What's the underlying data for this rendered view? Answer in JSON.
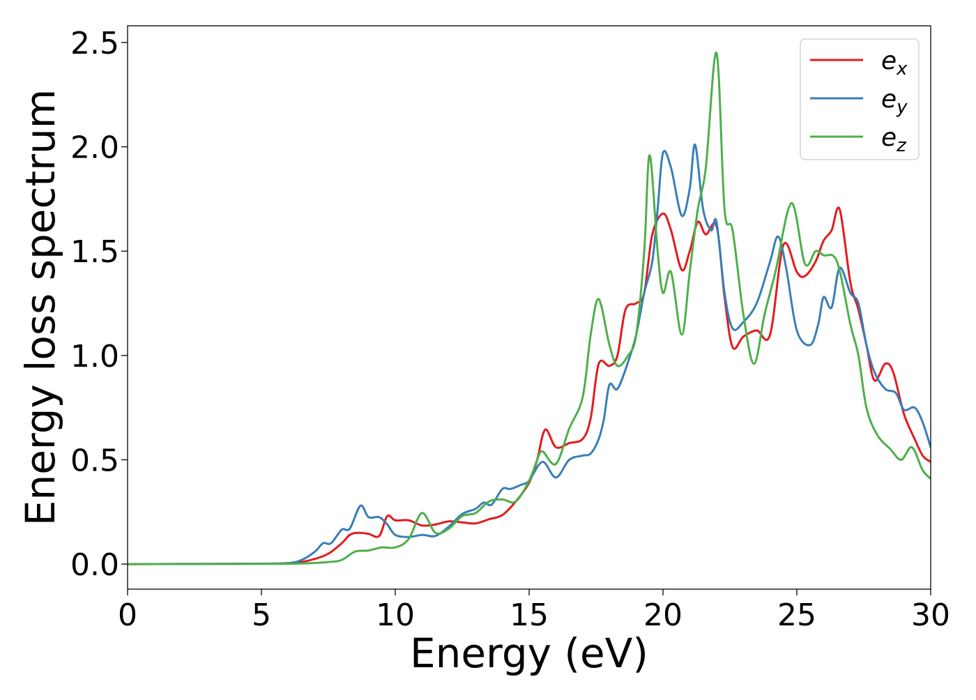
{
  "chart_data": {
    "type": "line",
    "xlabel": "Energy (eV)",
    "ylabel": "Energy loss spectrum",
    "xlim": [
      0,
      30
    ],
    "ylim": [
      -0.12,
      2.58
    ],
    "xticks": [
      0,
      5,
      10,
      15,
      20,
      25,
      30
    ],
    "xtick_labels": [
      "0",
      "5",
      "10",
      "15",
      "20",
      "25",
      "30"
    ],
    "yticks": [
      0.0,
      0.5,
      1.0,
      1.5,
      2.0,
      2.5
    ],
    "ytick_labels": [
      "0.0",
      "0.5",
      "1.0",
      "1.5",
      "2.0",
      "2.5"
    ],
    "grid": false,
    "legend_position": "top-right",
    "series": [
      {
        "name": "e",
        "subscript": "x",
        "color": "#e41a1c",
        "points": [
          [
            0,
            0
          ],
          [
            5,
            0.002
          ],
          [
            6,
            0.005
          ],
          [
            6.5,
            0.01
          ],
          [
            7,
            0.025
          ],
          [
            7.5,
            0.05
          ],
          [
            8,
            0.1
          ],
          [
            8.3,
            0.14
          ],
          [
            8.6,
            0.15
          ],
          [
            9.0,
            0.145
          ],
          [
            9.4,
            0.135
          ],
          [
            9.7,
            0.23
          ],
          [
            10.0,
            0.21
          ],
          [
            10.5,
            0.21
          ],
          [
            11.0,
            0.185
          ],
          [
            11.5,
            0.19
          ],
          [
            12.0,
            0.205
          ],
          [
            12.5,
            0.2
          ],
          [
            13.0,
            0.195
          ],
          [
            13.5,
            0.215
          ],
          [
            14.0,
            0.235
          ],
          [
            14.5,
            0.3
          ],
          [
            15.0,
            0.39
          ],
          [
            15.3,
            0.5
          ],
          [
            15.6,
            0.645
          ],
          [
            16.0,
            0.56
          ],
          [
            16.5,
            0.58
          ],
          [
            17.0,
            0.6
          ],
          [
            17.3,
            0.7
          ],
          [
            17.6,
            0.96
          ],
          [
            18.0,
            0.95
          ],
          [
            18.3,
            1.0
          ],
          [
            18.6,
            1.22
          ],
          [
            19.0,
            1.25
          ],
          [
            19.3,
            1.3
          ],
          [
            19.6,
            1.58
          ],
          [
            20.0,
            1.68
          ],
          [
            20.3,
            1.6
          ],
          [
            20.7,
            1.41
          ],
          [
            21.0,
            1.5
          ],
          [
            21.3,
            1.64
          ],
          [
            21.6,
            1.58
          ],
          [
            22.0,
            1.62
          ],
          [
            22.3,
            1.28
          ],
          [
            22.6,
            1.04
          ],
          [
            23.0,
            1.09
          ],
          [
            23.5,
            1.12
          ],
          [
            24.0,
            1.1
          ],
          [
            24.5,
            1.53
          ],
          [
            25.0,
            1.4
          ],
          [
            25.3,
            1.38
          ],
          [
            25.7,
            1.45
          ],
          [
            26.0,
            1.55
          ],
          [
            26.3,
            1.6
          ],
          [
            26.6,
            1.7
          ],
          [
            27.0,
            1.35
          ],
          [
            27.3,
            1.22
          ],
          [
            27.6,
            1.05
          ],
          [
            27.9,
            0.88
          ],
          [
            28.3,
            0.96
          ],
          [
            28.6,
            0.92
          ],
          [
            29.0,
            0.72
          ],
          [
            29.4,
            0.6
          ],
          [
            29.7,
            0.52
          ],
          [
            30.0,
            0.49
          ]
        ]
      },
      {
        "name": "e",
        "subscript": "y",
        "color": "#377eb8",
        "points": [
          [
            0,
            0
          ],
          [
            5,
            0.002
          ],
          [
            6,
            0.005
          ],
          [
            6.5,
            0.02
          ],
          [
            7,
            0.06
          ],
          [
            7.3,
            0.1
          ],
          [
            7.6,
            0.1
          ],
          [
            8,
            0.165
          ],
          [
            8.3,
            0.17
          ],
          [
            8.7,
            0.28
          ],
          [
            9.0,
            0.225
          ],
          [
            9.4,
            0.225
          ],
          [
            9.7,
            0.19
          ],
          [
            10.0,
            0.14
          ],
          [
            10.5,
            0.13
          ],
          [
            11.0,
            0.14
          ],
          [
            11.5,
            0.135
          ],
          [
            12.0,
            0.18
          ],
          [
            12.5,
            0.24
          ],
          [
            13.0,
            0.265
          ],
          [
            13.3,
            0.295
          ],
          [
            13.6,
            0.285
          ],
          [
            14.0,
            0.36
          ],
          [
            14.3,
            0.36
          ],
          [
            14.7,
            0.38
          ],
          [
            15.0,
            0.4
          ],
          [
            15.5,
            0.49
          ],
          [
            16.0,
            0.415
          ],
          [
            16.5,
            0.5
          ],
          [
            17.0,
            0.52
          ],
          [
            17.3,
            0.53
          ],
          [
            17.6,
            0.6
          ],
          [
            17.8,
            0.7
          ],
          [
            18.0,
            0.86
          ],
          [
            18.3,
            0.84
          ],
          [
            18.7,
            0.97
          ],
          [
            19.0,
            1.1
          ],
          [
            19.3,
            1.3
          ],
          [
            19.6,
            1.45
          ],
          [
            19.8,
            1.7
          ],
          [
            20.0,
            1.97
          ],
          [
            20.3,
            1.9
          ],
          [
            20.7,
            1.67
          ],
          [
            21.0,
            1.8
          ],
          [
            21.2,
            2.01
          ],
          [
            21.5,
            1.7
          ],
          [
            21.8,
            1.6
          ],
          [
            22.0,
            1.64
          ],
          [
            22.3,
            1.3
          ],
          [
            22.6,
            1.13
          ],
          [
            23.0,
            1.16
          ],
          [
            23.5,
            1.25
          ],
          [
            24.0,
            1.45
          ],
          [
            24.3,
            1.57
          ],
          [
            24.6,
            1.42
          ],
          [
            25.0,
            1.12
          ],
          [
            25.5,
            1.05
          ],
          [
            25.8,
            1.15
          ],
          [
            26.0,
            1.28
          ],
          [
            26.3,
            1.23
          ],
          [
            26.6,
            1.42
          ],
          [
            27.0,
            1.3
          ],
          [
            27.3,
            1.25
          ],
          [
            27.6,
            1.05
          ],
          [
            27.9,
            0.92
          ],
          [
            28.3,
            0.84
          ],
          [
            28.7,
            0.82
          ],
          [
            29.0,
            0.74
          ],
          [
            29.4,
            0.75
          ],
          [
            29.7,
            0.68
          ],
          [
            30.0,
            0.56
          ]
        ]
      },
      {
        "name": "e",
        "subscript": "z",
        "color": "#4daf4a",
        "points": [
          [
            0,
            0
          ],
          [
            5,
            0.001
          ],
          [
            6.5,
            0.003
          ],
          [
            7.5,
            0.01
          ],
          [
            8,
            0.02
          ],
          [
            8.5,
            0.06
          ],
          [
            9.0,
            0.065
          ],
          [
            9.5,
            0.08
          ],
          [
            10.0,
            0.08
          ],
          [
            10.5,
            0.12
          ],
          [
            11.0,
            0.245
          ],
          [
            11.5,
            0.15
          ],
          [
            12.0,
            0.17
          ],
          [
            12.5,
            0.23
          ],
          [
            13.0,
            0.245
          ],
          [
            13.5,
            0.3
          ],
          [
            14.0,
            0.31
          ],
          [
            14.5,
            0.3
          ],
          [
            15.0,
            0.4
          ],
          [
            15.3,
            0.5
          ],
          [
            15.5,
            0.54
          ],
          [
            16.0,
            0.48
          ],
          [
            16.5,
            0.65
          ],
          [
            17.0,
            0.8
          ],
          [
            17.3,
            1.1
          ],
          [
            17.6,
            1.27
          ],
          [
            18.0,
            1.05
          ],
          [
            18.3,
            0.95
          ],
          [
            18.7,
            1.0
          ],
          [
            19.0,
            1.1
          ],
          [
            19.3,
            1.5
          ],
          [
            19.5,
            1.96
          ],
          [
            19.8,
            1.5
          ],
          [
            20.0,
            1.3
          ],
          [
            20.3,
            1.4
          ],
          [
            20.7,
            1.1
          ],
          [
            21.0,
            1.4
          ],
          [
            21.3,
            1.7
          ],
          [
            21.6,
            1.9
          ],
          [
            22.0,
            2.45
          ],
          [
            22.3,
            1.7
          ],
          [
            22.6,
            1.6
          ],
          [
            23.0,
            1.2
          ],
          [
            23.4,
            0.96
          ],
          [
            23.8,
            1.2
          ],
          [
            24.2,
            1.4
          ],
          [
            24.8,
            1.73
          ],
          [
            25.3,
            1.44
          ],
          [
            25.7,
            1.5
          ],
          [
            26.0,
            1.48
          ],
          [
            26.5,
            1.45
          ],
          [
            27.0,
            1.15
          ],
          [
            27.3,
            1.0
          ],
          [
            27.6,
            0.75
          ],
          [
            28.0,
            0.62
          ],
          [
            28.5,
            0.55
          ],
          [
            28.9,
            0.5
          ],
          [
            29.3,
            0.56
          ],
          [
            29.7,
            0.45
          ],
          [
            30.0,
            0.41
          ]
        ]
      }
    ]
  }
}
